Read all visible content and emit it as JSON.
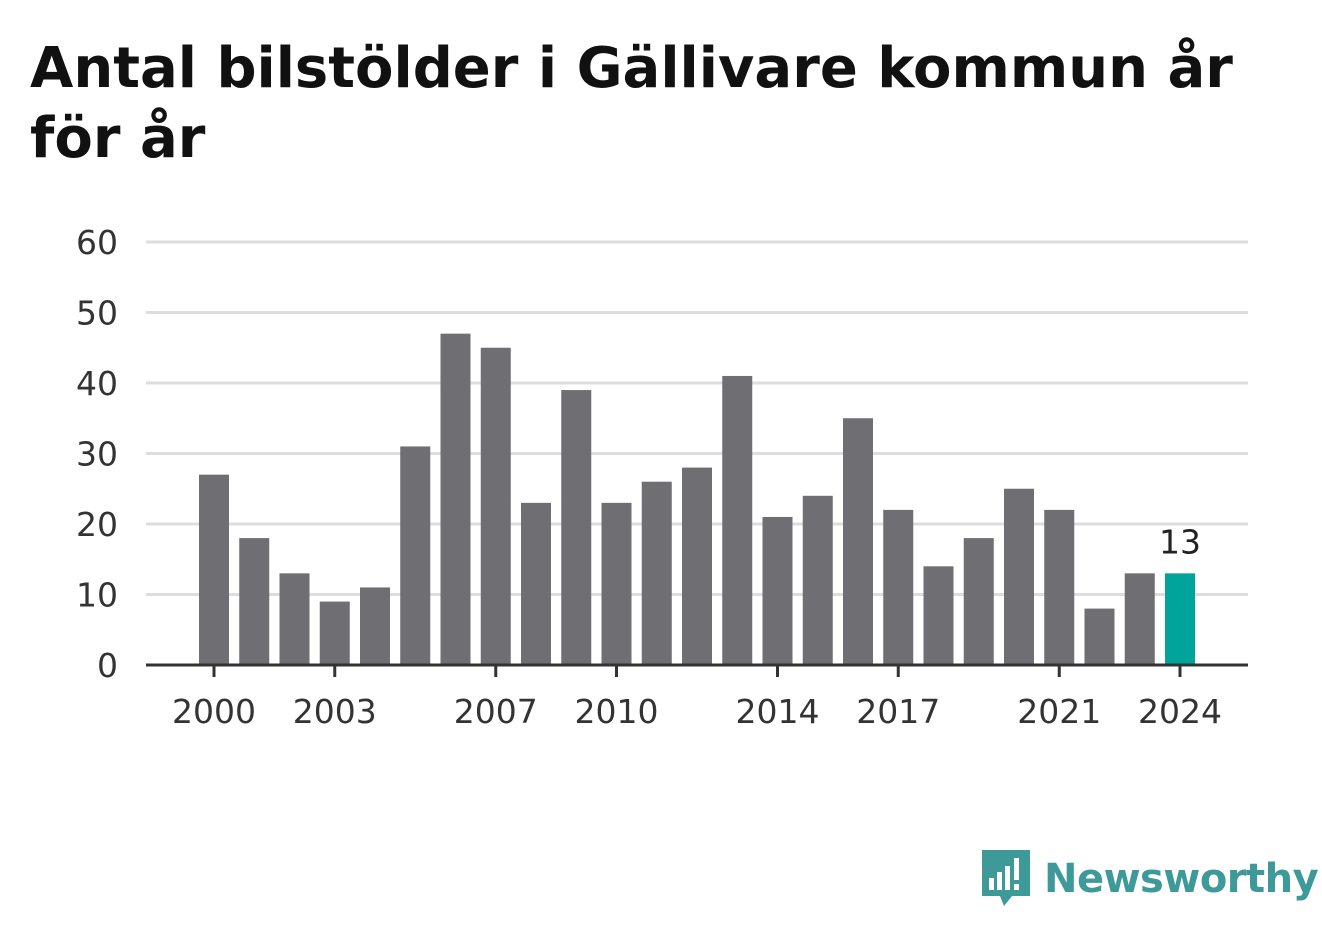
{
  "chart_data": {
    "type": "bar",
    "title": "Antal bilstölder i Gällivare kommun år för år",
    "categories": [
      2000,
      2001,
      2002,
      2003,
      2004,
      2005,
      2006,
      2007,
      2008,
      2009,
      2010,
      2011,
      2012,
      2013,
      2014,
      2015,
      2016,
      2017,
      2018,
      2019,
      2020,
      2021,
      2022,
      2023,
      2024
    ],
    "values": [
      27,
      18,
      13,
      9,
      11,
      31,
      47,
      45,
      23,
      39,
      23,
      26,
      28,
      41,
      21,
      24,
      35,
      22,
      14,
      18,
      25,
      22,
      8,
      13,
      13
    ],
    "x_tick_labels": [
      "2000",
      "2003",
      "2007",
      "2010",
      "2014",
      "2017",
      "2021",
      "2024"
    ],
    "y_ticks": [
      0,
      10,
      20,
      30,
      40,
      50,
      60
    ],
    "ylim": [
      0,
      60
    ],
    "grid": true,
    "highlight": {
      "category": 2024,
      "value": 13,
      "label": "13"
    },
    "colors": {
      "bar": "#6e6e73",
      "highlight": "#00a49a",
      "grid": "#dddddd",
      "axis": "#333333"
    }
  },
  "branding": {
    "logo_text": "Newsworthy",
    "logo_icon": "newsworthy-logo-icon",
    "color": "#3d9a98"
  }
}
